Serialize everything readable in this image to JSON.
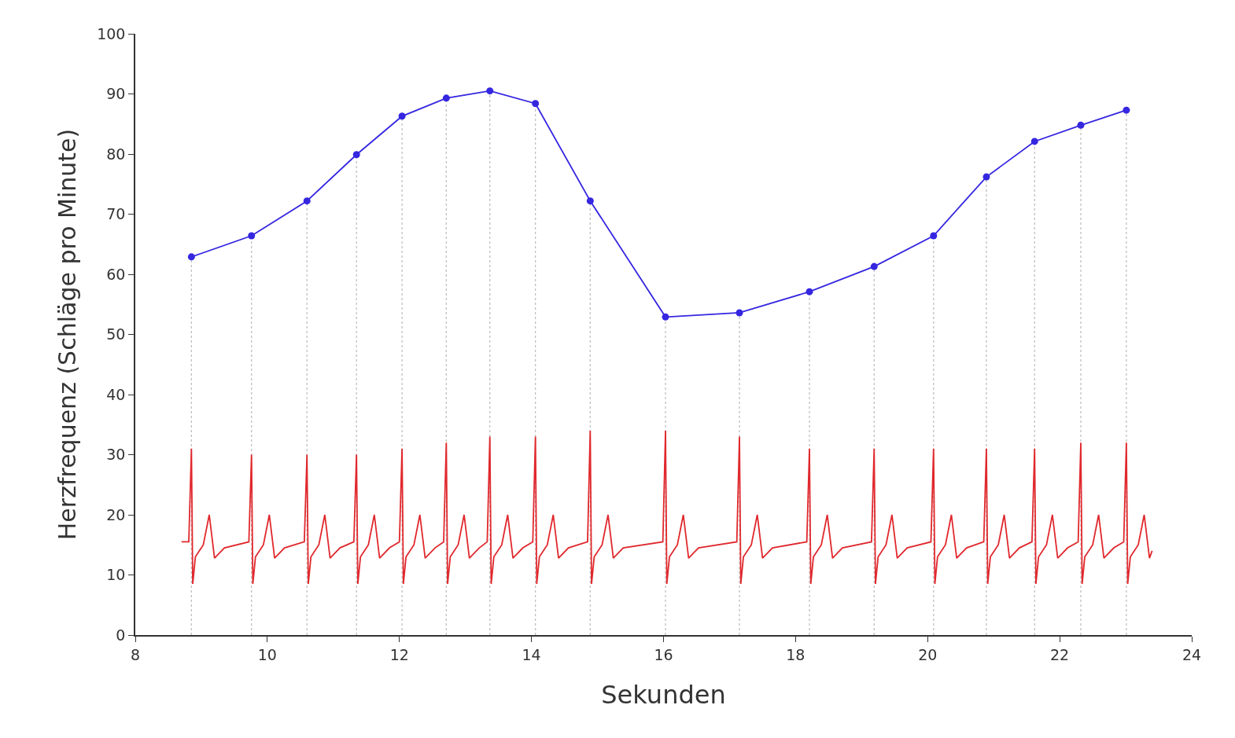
{
  "chart_data": {
    "type": "line",
    "xlabel": "Sekunden",
    "ylabel": "Herzfrequenz (Schläge pro Minute)",
    "xlim": [
      8,
      24
    ],
    "xticks": [
      8,
      10,
      12,
      14,
      16,
      18,
      20,
      22,
      24
    ],
    "ylim": [
      0,
      100
    ],
    "yticks": [
      0,
      10,
      20,
      30,
      40,
      50,
      60,
      70,
      80,
      90,
      100
    ],
    "grid": false,
    "series": [
      {
        "color": "#3526e0",
        "marker": "circle",
        "x": [
          8.85,
          9.76,
          10.6,
          11.35,
          12.04,
          12.71,
          13.37,
          14.06,
          14.89,
          16.03,
          17.15,
          18.21,
          19.19,
          20.09,
          20.89,
          21.62,
          22.32,
          23.01
        ],
        "values": [
          62.9,
          66.4,
          72.2,
          79.9,
          86.3,
          89.3,
          90.5,
          88.4,
          72.2,
          52.9,
          53.6,
          57.1,
          61.3,
          66.4,
          76.2,
          82.1,
          84.8,
          87.3
        ]
      },
      {
        "color": "#e0282d",
        "marker": "none",
        "x": [
          8.7,
          8.81,
          8.85,
          8.87,
          8.91,
          9.03,
          9.12,
          9.2,
          9.35,
          9.72,
          9.76,
          9.78,
          9.82,
          9.94,
          10.03,
          10.11,
          10.26,
          10.56,
          10.6,
          10.62,
          10.66,
          10.78,
          10.87,
          10.95,
          11.1,
          11.31,
          11.35,
          11.37,
          11.41,
          11.53,
          11.62,
          11.7,
          11.85,
          12,
          12.04,
          12.06,
          12.1,
          12.22,
          12.31,
          12.39,
          12.54,
          12.67,
          12.71,
          12.73,
          12.77,
          12.89,
          12.98,
          13.06,
          13.21,
          13.33,
          13.37,
          13.39,
          13.43,
          13.55,
          13.64,
          13.72,
          13.87,
          14.02,
          14.06,
          14.08,
          14.12,
          14.24,
          14.33,
          14.41,
          14.56,
          14.85,
          14.89,
          14.91,
          14.95,
          15.07,
          15.16,
          15.24,
          15.39,
          15.99,
          16.03,
          16.05,
          16.09,
          16.21,
          16.3,
          16.38,
          16.53,
          17.11,
          17.15,
          17.17,
          17.21,
          17.33,
          17.42,
          17.5,
          17.65,
          18.17,
          18.21,
          18.23,
          18.27,
          18.39,
          18.48,
          18.56,
          18.71,
          19.15,
          19.19,
          19.21,
          19.25,
          19.37,
          19.46,
          19.54,
          19.69,
          20.05,
          20.09,
          20.11,
          20.15,
          20.27,
          20.36,
          20.44,
          20.59,
          20.85,
          20.89,
          20.91,
          20.95,
          21.07,
          21.16,
          21.24,
          21.39,
          21.58,
          21.62,
          21.64,
          21.68,
          21.8,
          21.89,
          21.97,
          22.12,
          22.28,
          22.32,
          22.34,
          22.38,
          22.5,
          22.59,
          22.67,
          22.82,
          22.97,
          23.01,
          23.03,
          23.07,
          23.19,
          23.28,
          23.36,
          23.4
        ],
        "values": [
          15.5,
          15.5,
          31,
          8.5,
          13,
          15,
          20,
          12.8,
          14.5,
          15.5,
          30,
          8.5,
          13,
          15,
          20,
          12.8,
          14.5,
          15.5,
          30,
          8.5,
          13,
          15,
          20,
          12.8,
          14.5,
          15.5,
          30,
          8.5,
          13,
          15,
          20,
          12.8,
          14.5,
          15.5,
          31,
          8.5,
          13,
          15,
          20,
          12.8,
          14.5,
          15.5,
          32,
          8.5,
          13,
          15,
          20,
          12.8,
          14.5,
          15.5,
          33,
          8.5,
          13,
          15,
          20,
          12.8,
          14.5,
          15.5,
          33,
          8.5,
          13,
          15,
          20,
          12.8,
          14.5,
          15.5,
          34,
          8.5,
          13,
          15,
          20,
          12.8,
          14.5,
          15.5,
          34,
          8.5,
          13,
          15,
          20,
          12.8,
          14.5,
          15.5,
          33,
          8.5,
          13,
          15,
          20,
          12.8,
          14.5,
          15.5,
          31,
          8.5,
          13,
          15,
          20,
          12.8,
          14.5,
          15.5,
          31,
          8.5,
          13,
          15,
          20,
          12.8,
          14.5,
          15.5,
          31,
          8.5,
          13,
          15,
          20,
          12.8,
          14.5,
          15.5,
          31,
          8.5,
          13,
          15,
          20,
          12.8,
          14.5,
          15.5,
          31,
          8.5,
          13,
          15,
          20,
          12.8,
          14.5,
          15.5,
          32,
          8.5,
          13,
          15,
          20,
          12.8,
          14.5,
          15.5,
          32,
          8.5,
          13,
          15,
          20,
          12.8,
          14
        ]
      }
    ],
    "ref_lines": [
      {
        "axis": "x",
        "value": 8.85,
        "color": "#c0c0c0",
        "line_style": "dotted"
      },
      {
        "axis": "x",
        "value": 9.76,
        "color": "#c0c0c0",
        "line_style": "dotted"
      },
      {
        "axis": "x",
        "value": 10.6,
        "color": "#c0c0c0",
        "line_style": "dotted"
      },
      {
        "axis": "x",
        "value": 11.35,
        "color": "#c0c0c0",
        "line_style": "dotted"
      },
      {
        "axis": "x",
        "value": 12.04,
        "color": "#c0c0c0",
        "line_style": "dotted"
      },
      {
        "axis": "x",
        "value": 12.71,
        "color": "#c0c0c0",
        "line_style": "dotted"
      },
      {
        "axis": "x",
        "value": 13.37,
        "color": "#c0c0c0",
        "line_style": "dotted"
      },
      {
        "axis": "x",
        "value": 14.06,
        "color": "#c0c0c0",
        "line_style": "dotted"
      },
      {
        "axis": "x",
        "value": 14.89,
        "color": "#c0c0c0",
        "line_style": "dotted"
      },
      {
        "axis": "x",
        "value": 16.03,
        "color": "#c0c0c0",
        "line_style": "dotted"
      },
      {
        "axis": "x",
        "value": 17.15,
        "color": "#c0c0c0",
        "line_style": "dotted"
      },
      {
        "axis": "x",
        "value": 18.21,
        "color": "#c0c0c0",
        "line_style": "dotted"
      },
      {
        "axis": "x",
        "value": 19.19,
        "color": "#c0c0c0",
        "line_style": "dotted"
      },
      {
        "axis": "x",
        "value": 20.09,
        "color": "#c0c0c0",
        "line_style": "dotted"
      },
      {
        "axis": "x",
        "value": 20.89,
        "color": "#c0c0c0",
        "line_style": "dotted"
      },
      {
        "axis": "x",
        "value": 21.62,
        "color": "#c0c0c0",
        "line_style": "dotted"
      },
      {
        "axis": "x",
        "value": 22.32,
        "color": "#c0c0c0",
        "line_style": "dotted"
      },
      {
        "axis": "x",
        "value": 23.01,
        "color": "#c0c0c0",
        "line_style": "dotted"
      }
    ]
  }
}
